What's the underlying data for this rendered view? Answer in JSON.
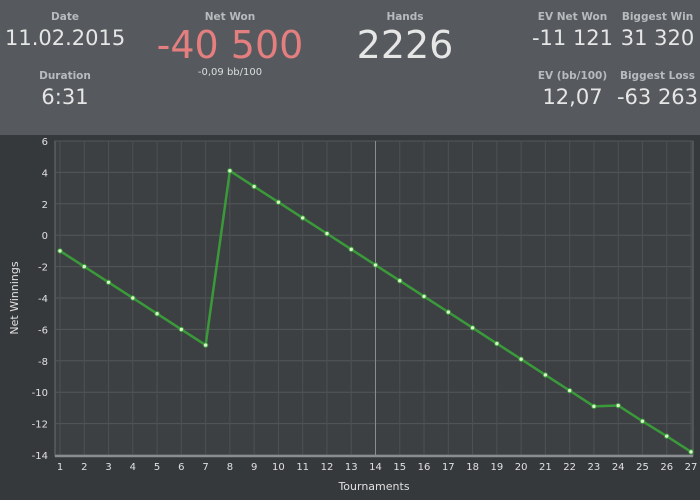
{
  "header": {
    "date": {
      "label": "Date",
      "value": "11.02.2015"
    },
    "duration": {
      "label": "Duration",
      "value": "6:31"
    },
    "net_won": {
      "label": "Net Won",
      "value": "-40 500",
      "sub": "-0,09 bb/100",
      "color": "#e57f7f"
    },
    "hands": {
      "label": "Hands",
      "value": "2226"
    },
    "ev_net_won": {
      "label": "EV Net Won",
      "value": "-11 121"
    },
    "biggest_win": {
      "label": "Biggest Win",
      "value": "31 320"
    },
    "ev_bb100": {
      "label": "EV (bb/100)",
      "value": "12,07"
    },
    "biggest_loss": {
      "label": "Biggest Loss",
      "value": "-63 263"
    }
  },
  "chart_data": {
    "type": "line",
    "xlabel": "Tournaments",
    "ylabel": "Net Winnings",
    "xlim": [
      1,
      27
    ],
    "ylim": [
      -14,
      6
    ],
    "yticks": [
      6,
      4,
      2,
      0,
      -2,
      -4,
      -6,
      -8,
      -10,
      -12,
      -14
    ],
    "x": [
      1,
      2,
      3,
      4,
      5,
      6,
      7,
      8,
      9,
      10,
      11,
      12,
      13,
      14,
      15,
      16,
      17,
      18,
      19,
      20,
      21,
      22,
      23,
      24,
      25,
      26,
      27
    ],
    "series": [
      {
        "values": [
          -1,
          -2,
          -3,
          -4,
          -5,
          -6,
          -7,
          4.1,
          3.1,
          2.1,
          1.1,
          0.1,
          -0.9,
          -1.9,
          -2.9,
          -3.9,
          -4.9,
          -5.9,
          -6.9,
          -7.9,
          -8.9,
          -9.9,
          -10.9,
          -10.85,
          -11.85,
          -12.8,
          -13.8
        ],
        "color": "#3a9a3a"
      }
    ],
    "crosshair_x": 14,
    "grid": true
  }
}
